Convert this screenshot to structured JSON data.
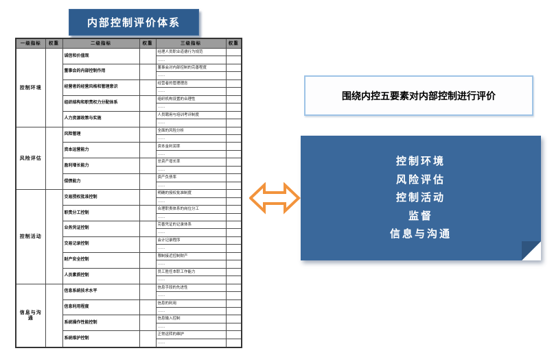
{
  "title": "内部控制评价体系",
  "headline": "围绕内控五要素对内部控制进行评价",
  "five_elements": [
    "控制环境",
    "风险评估",
    "控制活动",
    "监督",
    "信息与沟通"
  ],
  "colors": {
    "title_bg": "#2E5C8E",
    "panel_blue": "#3A689B",
    "panel_fold": "#2F557F",
    "arrow_orange": "#F2933C",
    "table_header_bg": "#9C9C9C",
    "headline_border": "#9DC3E6"
  },
  "table": {
    "headers": [
      "一级指标",
      "权重",
      "二级指标",
      "权重",
      "三级指标",
      "权重"
    ],
    "sections": [
      {
        "level1": "控制环境",
        "items": [
          {
            "level2": "诚信和价值观",
            "level3": [
              "经理人员职业道德行为规范",
              "……"
            ]
          },
          {
            "level2": "董事会的内部控制作用",
            "level3": [
              "董事会对内部控制的完善程度",
              "……"
            ]
          },
          {
            "level2": "经营者的经营风格和管理意识",
            "level3": [
              "经营者的管理理念",
              "……"
            ]
          },
          {
            "level2": "组织结构和职责权力分配体系",
            "level3": [
              "组织机构设置的合理性",
              "……"
            ]
          },
          {
            "level2": "人力资源政策与实施",
            "level3": [
              "人员聘用与培训考评制度",
              "……"
            ]
          }
        ]
      },
      {
        "level1": "风险评估",
        "items": [
          {
            "level2": "风险管理",
            "level3": [
              "全面的风险分析",
              "……"
            ]
          },
          {
            "level2": "资本运营能力",
            "level3": [
              "资本金利润率",
              "……"
            ]
          },
          {
            "level2": "盈利增长能力",
            "level3": [
              "总资产增长率",
              "……"
            ]
          },
          {
            "level2": "偿债能力",
            "level3": [
              "资产负债率",
              "……"
            ]
          }
        ]
      },
      {
        "level1": "控制活动",
        "items": [
          {
            "level2": "交易授权批准控制",
            "level3": [
              "明确的授权批准制度",
              "……"
            ]
          },
          {
            "level2": "职责分工控制",
            "level3": [
              "合理职责体系的岗位分工",
              "……"
            ]
          },
          {
            "level2": "业务凭证控制",
            "level3": [
              "完善凭证的记录体系",
              "……"
            ]
          },
          {
            "level2": "交易记录控制",
            "level3": [
              "会计记录程序",
              "……"
            ]
          },
          {
            "level2": "财产安全控制",
            "level3": [
              "限制接近控制财产",
              "……"
            ]
          },
          {
            "level2": "人员素质控制",
            "level3": [
              "员工胜任本职工作能力",
              "……"
            ]
          }
        ]
      },
      {
        "level1": "信息与沟通",
        "items": [
          {
            "level2": "信息系统技术水平",
            "level3": [
              "信息手段的先进性",
              "……"
            ]
          },
          {
            "level2": "信息利用程度",
            "level3": [
              "信息的利用",
              "……"
            ]
          },
          {
            "level2": "系统操作性能控制",
            "level3": [
              "信息输入控制",
              "……"
            ]
          },
          {
            "level2": "系统维护控制",
            "level3": [
              "正常运转的维护",
              "……"
            ]
          }
        ]
      }
    ]
  }
}
